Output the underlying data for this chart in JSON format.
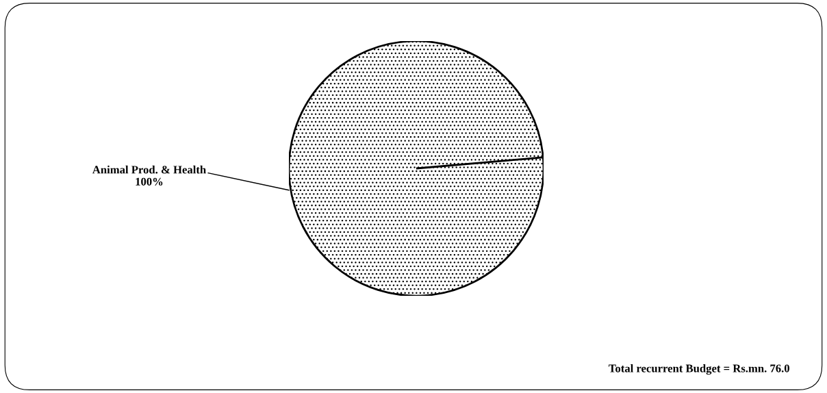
{
  "chart_data": {
    "type": "pie",
    "categories": [
      "Animal Prod. & Health"
    ],
    "values": [
      100
    ],
    "value_labels": [
      "100%"
    ],
    "colors": [
      "#ffffff"
    ],
    "annotations": [
      "Total recurrent Budget = Rs.mn. 76.0"
    ]
  }
}
